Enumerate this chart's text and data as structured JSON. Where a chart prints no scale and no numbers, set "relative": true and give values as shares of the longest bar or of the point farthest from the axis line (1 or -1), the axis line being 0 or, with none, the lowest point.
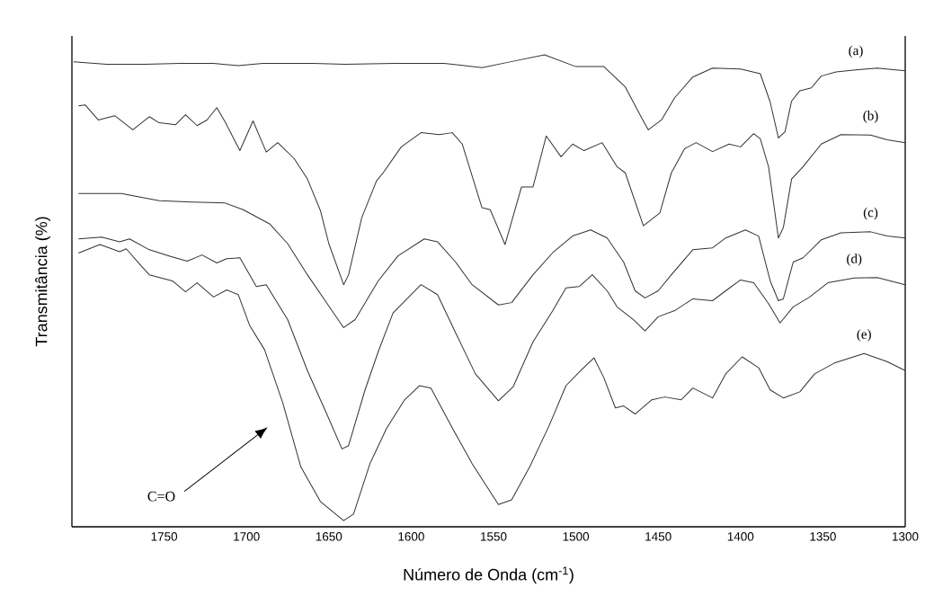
{
  "chart_data": {
    "type": "line",
    "relative": true,
    "xlabel": "Número de Onda (cm$^{-1}$)",
    "ylabel": "Transmitância (%)",
    "xlim": [
      1806,
      1300
    ],
    "xticks": [
      1750,
      1700,
      1650,
      1600,
      1550,
      1500,
      1450,
      1400,
      1350,
      1300
    ],
    "marker": "none",
    "line_style": "solid",
    "annotations": [
      "C=O"
    ],
    "series": [
      {
        "name": "(a)",
        "color": "#333333",
        "x": [
          1805,
          1785,
          1762,
          1740,
          1720,
          1705,
          1690,
          1660,
          1640,
          1610,
          1580,
          1557,
          1540,
          1519,
          1500,
          1483,
          1470,
          1460,
          1456,
          1448,
          1440,
          1429,
          1417,
          1400,
          1388,
          1382,
          1377,
          1373,
          1369,
          1364,
          1357,
          1351,
          1342,
          1330,
          1317,
          1300
        ],
        "values": [
          0.985,
          0.98,
          0.98,
          0.982,
          0.982,
          0.977,
          0.982,
          0.982,
          0.98,
          0.982,
          0.982,
          0.973,
          0.985,
          1,
          0.975,
          0.975,
          0.932,
          0.866,
          0.841,
          0.862,
          0.909,
          0.953,
          0.972,
          0.97,
          0.96,
          0.9,
          0.824,
          0.837,
          0.902,
          0.924,
          0.93,
          0.955,
          0.964,
          0.968,
          0.972,
          0.966
        ]
      },
      {
        "name": "(b)",
        "color": "#333333",
        "x": [
          1802,
          1798,
          1790,
          1780,
          1769,
          1759,
          1753,
          1743,
          1737,
          1730,
          1724,
          1718,
          1713,
          1704,
          1696,
          1688,
          1681,
          1671,
          1663,
          1655,
          1650,
          1641,
          1638,
          1630,
          1621,
          1617,
          1606,
          1594,
          1583,
          1575,
          1569,
          1557,
          1552,
          1543,
          1533,
          1526,
          1518,
          1509,
          1502,
          1495,
          1484,
          1475,
          1470,
          1459,
          1449,
          1442,
          1434,
          1427,
          1417,
          1407,
          1400,
          1392,
          1388,
          1383,
          1377,
          1374,
          1369,
          1362,
          1351,
          1339,
          1321,
          1311,
          1300
        ],
        "values": [
          0.892,
          0.894,
          0.862,
          0.871,
          0.841,
          0.869,
          0.856,
          0.852,
          0.873,
          0.85,
          0.862,
          0.888,
          0.858,
          0.797,
          0.86,
          0.794,
          0.814,
          0.78,
          0.737,
          0.669,
          0.6,
          0.513,
          0.534,
          0.655,
          0.733,
          0.75,
          0.805,
          0.835,
          0.831,
          0.835,
          0.811,
          0.676,
          0.672,
          0.598,
          0.72,
          0.72,
          0.828,
          0.784,
          0.811,
          0.797,
          0.814,
          0.763,
          0.75,
          0.638,
          0.665,
          0.75,
          0.801,
          0.814,
          0.795,
          0.811,
          0.805,
          0.833,
          0.822,
          0.763,
          0.612,
          0.634,
          0.737,
          0.763,
          0.811,
          0.831,
          0.83,
          0.82,
          0.814
        ]
      },
      {
        "name": "(c)",
        "color": "#333333",
        "x": [
          1802,
          1776,
          1753,
          1733,
          1713,
          1702,
          1686,
          1675,
          1663,
          1651,
          1641,
          1634,
          1620,
          1608,
          1592,
          1584,
          1573,
          1563,
          1547,
          1539,
          1526,
          1514,
          1502,
          1491,
          1481,
          1471,
          1464,
          1458,
          1450,
          1442,
          1429,
          1417,
          1409,
          1397,
          1389,
          1382,
          1377,
          1374,
          1368,
          1362,
          1351,
          1339,
          1321,
          1311,
          1300
        ],
        "values": [
          0.706,
          0.706,
          0.691,
          0.688,
          0.686,
          0.672,
          0.642,
          0.6,
          0.534,
          0.473,
          0.422,
          0.439,
          0.521,
          0.574,
          0.61,
          0.604,
          0.561,
          0.513,
          0.47,
          0.475,
          0.534,
          0.581,
          0.616,
          0.629,
          0.612,
          0.561,
          0.5,
          0.485,
          0.5,
          0.534,
          0.587,
          0.591,
          0.612,
          0.629,
          0.616,
          0.521,
          0.479,
          0.483,
          0.561,
          0.57,
          0.608,
          0.623,
          0.625,
          0.616,
          0.612
        ]
      },
      {
        "name": "(d)",
        "color": "#333333",
        "x": [
          1802,
          1788,
          1777,
          1771,
          1759,
          1747,
          1736,
          1727,
          1718,
          1712,
          1704,
          1694,
          1688,
          1675,
          1663,
          1651,
          1642,
          1638,
          1628,
          1620,
          1611,
          1594,
          1584,
          1573,
          1561,
          1547,
          1538,
          1526,
          1514,
          1506,
          1498,
          1490,
          1481,
          1475,
          1465,
          1458,
          1450,
          1440,
          1429,
          1417,
          1409,
          1400,
          1392,
          1383,
          1376,
          1368,
          1358,
          1347,
          1331,
          1317,
          1300
        ],
        "values": [
          0.61,
          0.614,
          0.604,
          0.61,
          0.587,
          0.574,
          0.563,
          0.576,
          0.559,
          0.568,
          0.57,
          0.509,
          0.513,
          0.439,
          0.331,
          0.237,
          0.165,
          0.172,
          0.29,
          0.371,
          0.453,
          0.513,
          0.492,
          0.411,
          0.324,
          0.267,
          0.297,
          0.392,
          0.458,
          0.506,
          0.509,
          0.534,
          0.5,
          0.466,
          0.439,
          0.415,
          0.445,
          0.458,
          0.483,
          0.479,
          0.5,
          0.523,
          0.517,
          0.473,
          0.432,
          0.466,
          0.487,
          0.517,
          0.527,
          0.528,
          0.513
        ]
      },
      {
        "name": "(e)",
        "color": "#333333",
        "x": [
          1802,
          1789,
          1777,
          1773,
          1764,
          1759,
          1745,
          1737,
          1730,
          1720,
          1712,
          1705,
          1698,
          1689,
          1678,
          1667,
          1655,
          1641,
          1635,
          1625,
          1615,
          1604,
          1595,
          1588,
          1574,
          1563,
          1547,
          1539,
          1528,
          1516,
          1506,
          1497,
          1489,
          1483,
          1476,
          1471,
          1464,
          1454,
          1446,
          1436,
          1429,
          1417,
          1409,
          1399,
          1389,
          1382,
          1374,
          1364,
          1355,
          1343,
          1325,
          1311,
          1300
        ],
        "values": [
          0.58,
          0.598,
          0.583,
          0.589,
          0.553,
          0.534,
          0.521,
          0.498,
          0.517,
          0.487,
          0.502,
          0.492,
          0.426,
          0.375,
          0.263,
          0.127,
          0.053,
          0.013,
          0.027,
          0.134,
          0.208,
          0.269,
          0.299,
          0.294,
          0.203,
          0.134,
          0.047,
          0.057,
          0.127,
          0.216,
          0.299,
          0.331,
          0.358,
          0.316,
          0.252,
          0.256,
          0.239,
          0.269,
          0.275,
          0.269,
          0.294,
          0.273,
          0.324,
          0.36,
          0.337,
          0.29,
          0.273,
          0.286,
          0.324,
          0.347,
          0.367,
          0.35,
          0.331
        ]
      }
    ]
  }
}
